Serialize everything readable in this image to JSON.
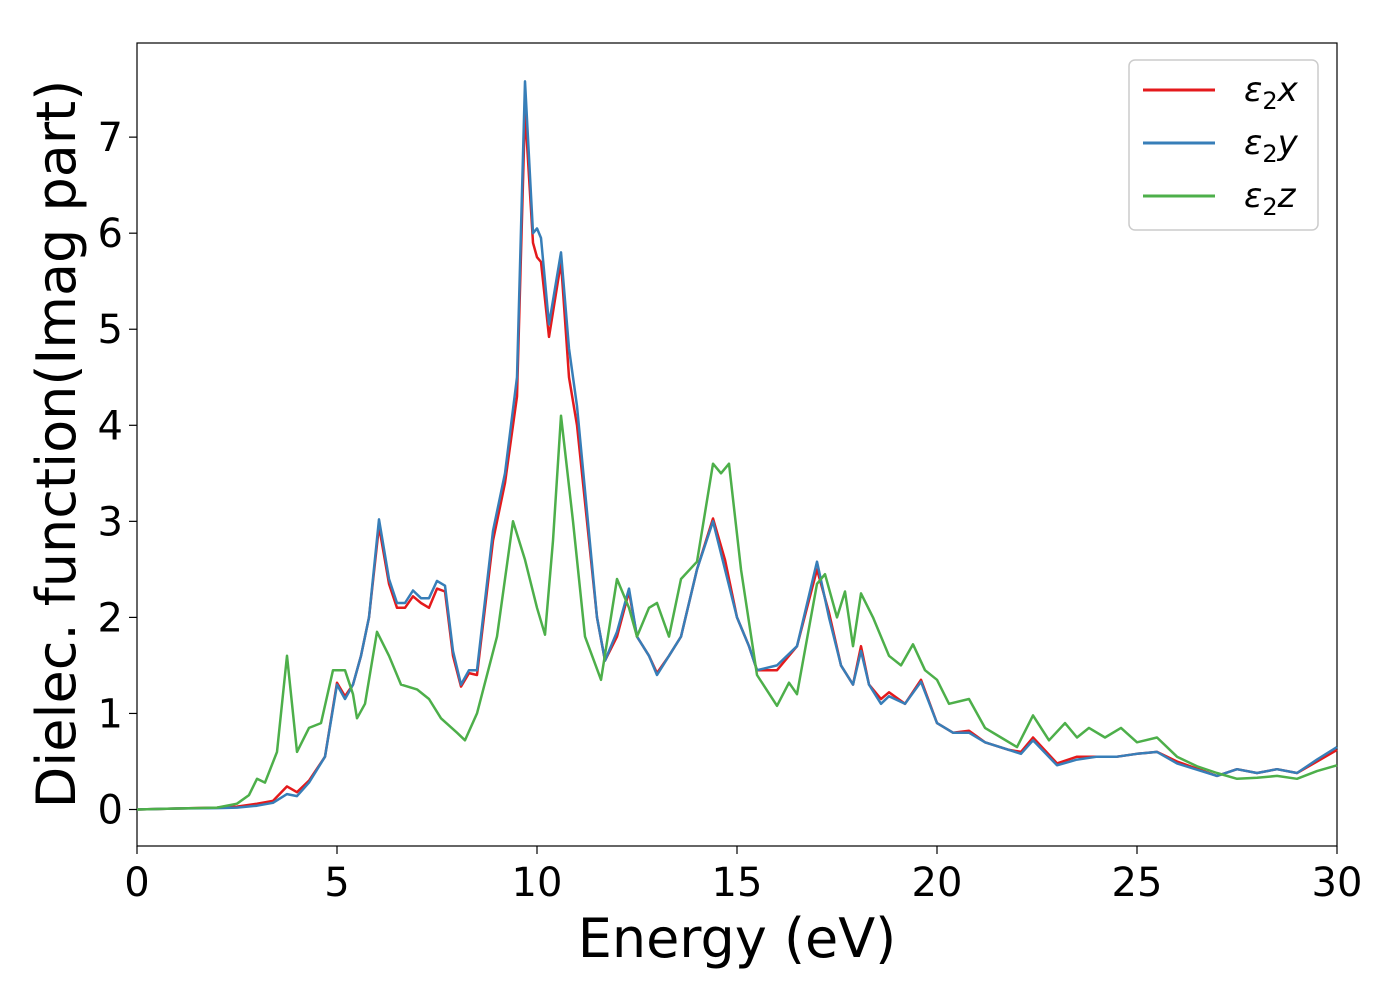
{
  "chart_data": {
    "type": "line",
    "title": "",
    "xlabel": "Energy (eV)",
    "ylabel": "Dielec. function(Imag part)",
    "xlim": [
      0,
      30
    ],
    "ylim": [
      -0.38,
      7.98
    ],
    "xticks": [
      0,
      5,
      10,
      15,
      20,
      25,
      30
    ],
    "yticks": [
      0,
      1,
      2,
      3,
      4,
      5,
      6,
      7
    ],
    "grid": false,
    "legend_position": "top-right",
    "series": [
      {
        "name": "ε2x",
        "legend": {
          "base": "ε",
          "sub": "2",
          "suffix": "x"
        },
        "color": "#e41a1c",
        "points": [
          [
            0,
            0
          ],
          [
            1,
            0.01
          ],
          [
            2,
            0.02
          ],
          [
            2.5,
            0.03
          ],
          [
            3,
            0.06
          ],
          [
            3.4,
            0.09
          ],
          [
            3.75,
            0.24
          ],
          [
            4,
            0.18
          ],
          [
            4.3,
            0.3
          ],
          [
            4.7,
            0.55
          ],
          [
            5,
            1.32
          ],
          [
            5.2,
            1.18
          ],
          [
            5.4,
            1.3
          ],
          [
            5.6,
            1.6
          ],
          [
            5.8,
            2
          ],
          [
            6.05,
            2.95
          ],
          [
            6.3,
            2.35
          ],
          [
            6.5,
            2.1
          ],
          [
            6.7,
            2.1
          ],
          [
            6.9,
            2.22
          ],
          [
            7.1,
            2.15
          ],
          [
            7.3,
            2.1
          ],
          [
            7.5,
            2.3
          ],
          [
            7.7,
            2.27
          ],
          [
            7.9,
            1.6
          ],
          [
            8.1,
            1.28
          ],
          [
            8.3,
            1.42
          ],
          [
            8.5,
            1.4
          ],
          [
            8.9,
            2.8
          ],
          [
            9.2,
            3.4
          ],
          [
            9.5,
            4.3
          ],
          [
            9.7,
            7.28
          ],
          [
            9.9,
            5.9
          ],
          [
            10,
            5.75
          ],
          [
            10.1,
            5.7
          ],
          [
            10.3,
            4.92
          ],
          [
            10.6,
            5.7
          ],
          [
            10.8,
            4.5
          ],
          [
            11,
            4
          ],
          [
            11.5,
            2
          ],
          [
            11.7,
            1.55
          ],
          [
            12,
            1.8
          ],
          [
            12.3,
            2.27
          ],
          [
            12.5,
            1.8
          ],
          [
            12.8,
            1.6
          ],
          [
            13,
            1.42
          ],
          [
            13.3,
            1.6
          ],
          [
            13.6,
            1.8
          ],
          [
            14,
            2.5
          ],
          [
            14.4,
            3.03
          ],
          [
            14.7,
            2.6
          ],
          [
            15,
            2
          ],
          [
            15.3,
            1.7
          ],
          [
            15.5,
            1.45
          ],
          [
            16,
            1.45
          ],
          [
            16.5,
            1.7
          ],
          [
            17,
            2.5
          ],
          [
            17.3,
            2.05
          ],
          [
            17.6,
            1.5
          ],
          [
            17.9,
            1.3
          ],
          [
            18.1,
            1.7
          ],
          [
            18.3,
            1.3
          ],
          [
            18.6,
            1.15
          ],
          [
            18.8,
            1.22
          ],
          [
            19.2,
            1.1
          ],
          [
            19.6,
            1.35
          ],
          [
            20,
            0.9
          ],
          [
            20.4,
            0.8
          ],
          [
            20.8,
            0.82
          ],
          [
            21.2,
            0.7
          ],
          [
            21.8,
            0.62
          ],
          [
            22.1,
            0.6
          ],
          [
            22.4,
            0.75
          ],
          [
            23,
            0.48
          ],
          [
            23.5,
            0.55
          ],
          [
            24,
            0.55
          ],
          [
            24.5,
            0.55
          ],
          [
            25,
            0.58
          ],
          [
            25.5,
            0.6
          ],
          [
            26,
            0.5
          ],
          [
            27,
            0.35
          ],
          [
            27.5,
            0.42
          ],
          [
            28,
            0.38
          ],
          [
            28.5,
            0.42
          ],
          [
            29,
            0.38
          ],
          [
            29.5,
            0.5
          ],
          [
            30,
            0.62
          ]
        ]
      },
      {
        "name": "ε2y",
        "legend": {
          "base": "ε",
          "sub": "2",
          "suffix": "y"
        },
        "color": "#377eb8",
        "points": [
          [
            0,
            0
          ],
          [
            1,
            0.01
          ],
          [
            2,
            0.015
          ],
          [
            2.5,
            0.02
          ],
          [
            3,
            0.04
          ],
          [
            3.4,
            0.07
          ],
          [
            3.75,
            0.16
          ],
          [
            4,
            0.14
          ],
          [
            4.3,
            0.28
          ],
          [
            4.7,
            0.55
          ],
          [
            5,
            1.3
          ],
          [
            5.2,
            1.15
          ],
          [
            5.4,
            1.3
          ],
          [
            5.6,
            1.6
          ],
          [
            5.8,
            2
          ],
          [
            6.05,
            3.02
          ],
          [
            6.3,
            2.4
          ],
          [
            6.5,
            2.15
          ],
          [
            6.7,
            2.15
          ],
          [
            6.9,
            2.28
          ],
          [
            7.1,
            2.2
          ],
          [
            7.3,
            2.2
          ],
          [
            7.5,
            2.38
          ],
          [
            7.7,
            2.33
          ],
          [
            7.9,
            1.65
          ],
          [
            8.1,
            1.3
          ],
          [
            8.3,
            1.45
          ],
          [
            8.5,
            1.45
          ],
          [
            8.9,
            2.9
          ],
          [
            9.2,
            3.5
          ],
          [
            9.5,
            4.5
          ],
          [
            9.7,
            7.58
          ],
          [
            9.9,
            6.0
          ],
          [
            10,
            6.05
          ],
          [
            10.1,
            5.95
          ],
          [
            10.3,
            5.05
          ],
          [
            10.6,
            5.8
          ],
          [
            10.8,
            4.8
          ],
          [
            11,
            4.2
          ],
          [
            11.5,
            2
          ],
          [
            11.7,
            1.55
          ],
          [
            12,
            1.85
          ],
          [
            12.3,
            2.3
          ],
          [
            12.5,
            1.8
          ],
          [
            12.8,
            1.6
          ],
          [
            13,
            1.4
          ],
          [
            13.3,
            1.6
          ],
          [
            13.6,
            1.8
          ],
          [
            14,
            2.5
          ],
          [
            14.4,
            3.0
          ],
          [
            14.7,
            2.5
          ],
          [
            15,
            2
          ],
          [
            15.3,
            1.7
          ],
          [
            15.5,
            1.45
          ],
          [
            16,
            1.5
          ],
          [
            16.5,
            1.7
          ],
          [
            17,
            2.58
          ],
          [
            17.3,
            2.0
          ],
          [
            17.6,
            1.5
          ],
          [
            17.9,
            1.3
          ],
          [
            18.1,
            1.65
          ],
          [
            18.3,
            1.3
          ],
          [
            18.6,
            1.1
          ],
          [
            18.8,
            1.18
          ],
          [
            19.2,
            1.1
          ],
          [
            19.6,
            1.33
          ],
          [
            20,
            0.9
          ],
          [
            20.4,
            0.8
          ],
          [
            20.8,
            0.8
          ],
          [
            21.2,
            0.7
          ],
          [
            21.8,
            0.62
          ],
          [
            22.1,
            0.58
          ],
          [
            22.4,
            0.72
          ],
          [
            23,
            0.46
          ],
          [
            23.5,
            0.52
          ],
          [
            24,
            0.55
          ],
          [
            24.5,
            0.55
          ],
          [
            25,
            0.58
          ],
          [
            25.5,
            0.6
          ],
          [
            26,
            0.48
          ],
          [
            27,
            0.35
          ],
          [
            27.5,
            0.42
          ],
          [
            28,
            0.38
          ],
          [
            28.5,
            0.42
          ],
          [
            29,
            0.38
          ],
          [
            29.5,
            0.52
          ],
          [
            30,
            0.65
          ]
        ]
      },
      {
        "name": "ε2z",
        "legend": {
          "base": "ε",
          "sub": "2",
          "suffix": "z"
        },
        "color": "#4daf4a",
        "points": [
          [
            0,
            0
          ],
          [
            1,
            0.01
          ],
          [
            2,
            0.02
          ],
          [
            2.5,
            0.06
          ],
          [
            2.8,
            0.15
          ],
          [
            3,
            0.32
          ],
          [
            3.2,
            0.28
          ],
          [
            3.5,
            0.6
          ],
          [
            3.75,
            1.6
          ],
          [
            4,
            0.6
          ],
          [
            4.3,
            0.85
          ],
          [
            4.6,
            0.9
          ],
          [
            4.9,
            1.45
          ],
          [
            5.2,
            1.45
          ],
          [
            5.4,
            1.2
          ],
          [
            5.5,
            0.95
          ],
          [
            5.7,
            1.1
          ],
          [
            6,
            1.85
          ],
          [
            6.3,
            1.6
          ],
          [
            6.6,
            1.3
          ],
          [
            7,
            1.25
          ],
          [
            7.3,
            1.15
          ],
          [
            7.6,
            0.95
          ],
          [
            8,
            0.8
          ],
          [
            8.2,
            0.72
          ],
          [
            8.5,
            1.0
          ],
          [
            9,
            1.8
          ],
          [
            9.4,
            3.0
          ],
          [
            9.7,
            2.6
          ],
          [
            10,
            2.1
          ],
          [
            10.2,
            1.82
          ],
          [
            10.4,
            2.8
          ],
          [
            10.6,
            4.1
          ],
          [
            10.9,
            3.0
          ],
          [
            11.2,
            1.8
          ],
          [
            11.6,
            1.35
          ],
          [
            12,
            2.4
          ],
          [
            12.3,
            2.1
          ],
          [
            12.5,
            1.8
          ],
          [
            12.8,
            2.1
          ],
          [
            13,
            2.15
          ],
          [
            13.3,
            1.8
          ],
          [
            13.6,
            2.4
          ],
          [
            14,
            2.58
          ],
          [
            14.4,
            3.6
          ],
          [
            14.6,
            3.5
          ],
          [
            14.8,
            3.6
          ],
          [
            15.1,
            2.5
          ],
          [
            15.5,
            1.4
          ],
          [
            16,
            1.08
          ],
          [
            16.3,
            1.32
          ],
          [
            16.5,
            1.2
          ],
          [
            17,
            2.35
          ],
          [
            17.2,
            2.45
          ],
          [
            17.5,
            2.0
          ],
          [
            17.7,
            2.27
          ],
          [
            17.9,
            1.7
          ],
          [
            18.1,
            2.25
          ],
          [
            18.4,
            2.0
          ],
          [
            18.8,
            1.6
          ],
          [
            19.1,
            1.5
          ],
          [
            19.4,
            1.72
          ],
          [
            19.7,
            1.45
          ],
          [
            20,
            1.35
          ],
          [
            20.3,
            1.1
          ],
          [
            20.8,
            1.15
          ],
          [
            21.2,
            0.85
          ],
          [
            21.6,
            0.75
          ],
          [
            22,
            0.65
          ],
          [
            22.4,
            0.98
          ],
          [
            22.8,
            0.72
          ],
          [
            23.2,
            0.9
          ],
          [
            23.5,
            0.75
          ],
          [
            23.8,
            0.85
          ],
          [
            24.2,
            0.75
          ],
          [
            24.6,
            0.85
          ],
          [
            25,
            0.7
          ],
          [
            25.5,
            0.75
          ],
          [
            26,
            0.55
          ],
          [
            26.5,
            0.45
          ],
          [
            27,
            0.38
          ],
          [
            27.5,
            0.32
          ],
          [
            28,
            0.33
          ],
          [
            28.5,
            0.35
          ],
          [
            29,
            0.32
          ],
          [
            29.5,
            0.4
          ],
          [
            30,
            0.46
          ]
        ]
      }
    ]
  }
}
